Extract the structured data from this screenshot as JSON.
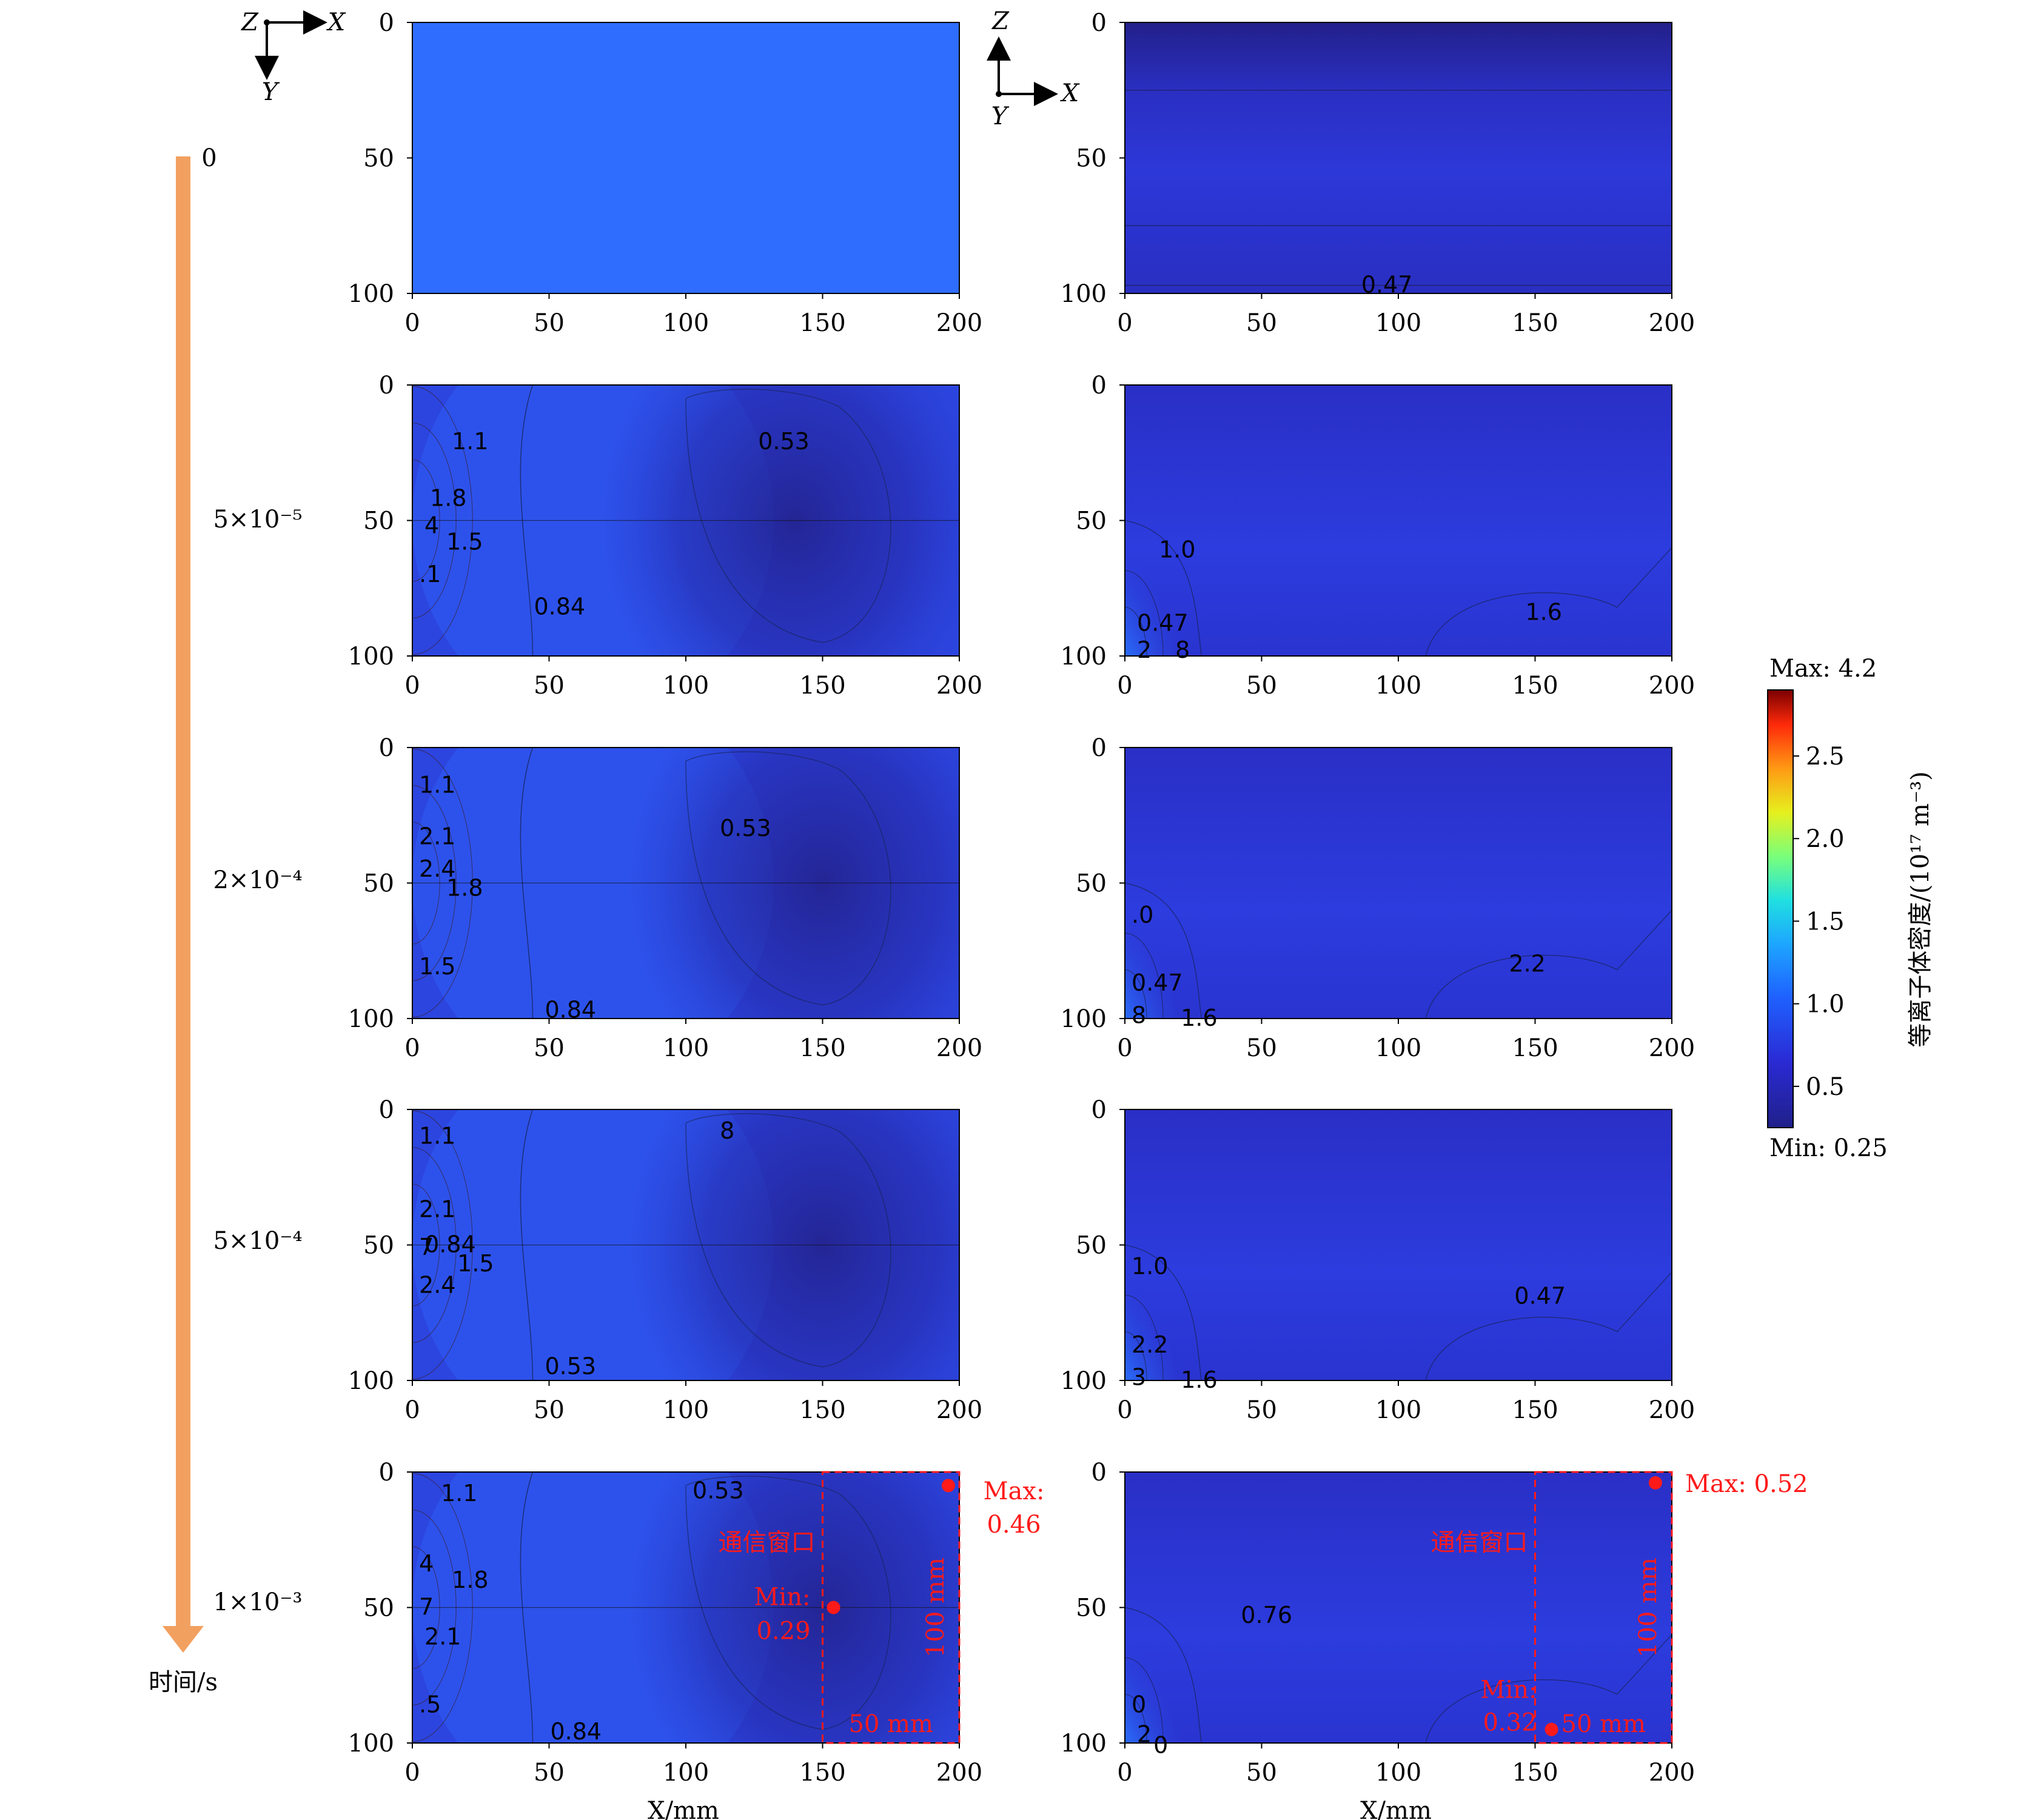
{
  "figure": {
    "time_axis": {
      "label": "时间/s",
      "times": [
        "0",
        "5×10⁻⁵",
        "2×10⁻⁴",
        "5×10⁻⁴",
        "1×10⁻³"
      ]
    },
    "axes_icons": [
      {
        "horizontal": "X",
        "vertical": "Y",
        "corner": "Z"
      },
      {
        "horizontal": "X",
        "vertical": "Y",
        "up": "Z"
      }
    ],
    "x_axis_label": "X/mm",
    "colorbar": {
      "label": "等离子体密度/(10¹⁷ m⁻³)",
      "max_label": "Max: 4.2",
      "min_label": "Min: 0.25",
      "ticks": [
        "2.5",
        "2.0",
        "1.5",
        "1.0",
        "0.5"
      ]
    },
    "window": {
      "title": "通信窗口",
      "width_label": "50 mm",
      "height_label": "100 mm"
    },
    "left_final_markers": {
      "max_label": "Max:",
      "max_value": "0.46",
      "min_label": "Min:",
      "min_value": "0.29"
    },
    "right_final_markers": {
      "max_text": "Max: 0.52",
      "min_label": "Min:",
      "min_value": "0.32"
    }
  },
  "chart_data": {
    "type": "heatmap",
    "quantity": "等离子体密度/(10¹⁷ m⁻³)",
    "x_ticks": [
      "0",
      "50",
      "100",
      "150",
      "200"
    ],
    "y_ticks": [
      "0",
      "50",
      "100"
    ],
    "xlim": [
      0,
      200
    ],
    "ylim": [
      100,
      0
    ],
    "color_range": [
      0.25,
      2.9
    ],
    "colormap": "jet",
    "columns": [
      "X-Y plane",
      "X-Z plane"
    ],
    "rows": [
      {
        "time": "0",
        "left": {
          "uniform_value": 0.75,
          "contour_labels": []
        },
        "right": {
          "uniform_value": 0.35,
          "contour_labels": [
            "0.47"
          ]
        }
      },
      {
        "time": "5×10⁻⁵",
        "left": {
          "contour_labels": [
            "1.1",
            "1.8",
            "4",
            "1.5",
            ".1",
            "0.53",
            "0.84"
          ]
        },
        "right": {
          "contour_labels": [
            "1.0",
            "0.47",
            "2",
            "8",
            "1.6"
          ]
        }
      },
      {
        "time": "2×10⁻⁴",
        "left": {
          "contour_labels": [
            "1.1",
            "2.1",
            "2.4",
            "1.8",
            "1.5",
            "0.53",
            "0.84"
          ]
        },
        "right": {
          "contour_labels": [
            ".0",
            "0.47",
            "2.2",
            "8",
            "1.6"
          ]
        }
      },
      {
        "time": "5×10⁻⁴",
        "left": {
          "contour_labels": [
            "1.1",
            "2.1",
            "7",
            "1.5",
            "2.4",
            "8",
            "0.53",
            "0.84"
          ]
        },
        "right": {
          "contour_labels": [
            "1.0",
            "0.47",
            "2.2",
            "3",
            "1.6"
          ]
        }
      },
      {
        "time": "1×10⁻³",
        "left": {
          "contour_labels": [
            "1.1",
            "4",
            "1.8",
            "7",
            "2.1",
            ".5",
            "0.53",
            "0.84"
          ],
          "max": 0.46,
          "min": 0.29,
          "max_at": [
            196,
            5
          ],
          "min_at": [
            154,
            50
          ]
        },
        "right": {
          "contour_labels": [
            "0.76",
            "0",
            "2",
            "0"
          ],
          "max": 0.52,
          "min": 0.32,
          "max_at": [
            194,
            4
          ],
          "min_at": [
            156,
            95
          ]
        }
      }
    ]
  }
}
